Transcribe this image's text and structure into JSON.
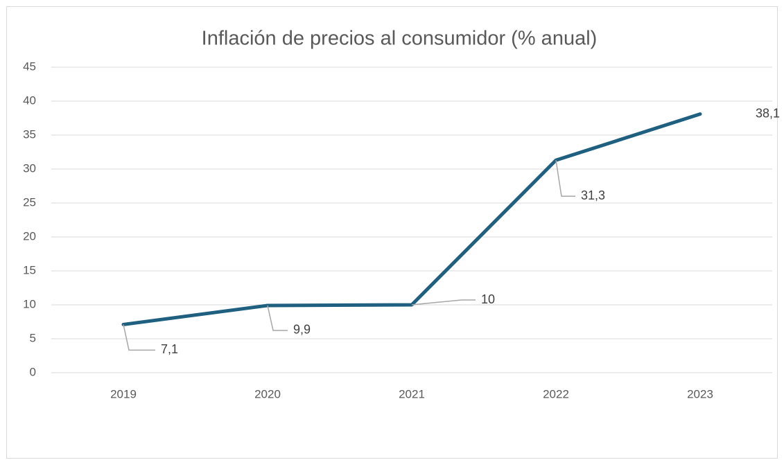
{
  "chart_data": {
    "type": "line",
    "title": "Inflación de precios al consumidor (% anual)",
    "categories": [
      "2019",
      "2020",
      "2021",
      "2022",
      "2023"
    ],
    "series": [
      {
        "name": "Inflación",
        "color": "#1f5f80",
        "values": [
          7.1,
          9.9,
          10,
          31.3,
          38.1
        ],
        "value_labels": [
          "7,1",
          "9,9",
          "10",
          "31,3",
          "38,1"
        ]
      }
    ],
    "ylim": [
      0,
      45
    ],
    "yticks": [
      0,
      5,
      10,
      15,
      20,
      25,
      30,
      35,
      40,
      45
    ],
    "grid": true
  }
}
